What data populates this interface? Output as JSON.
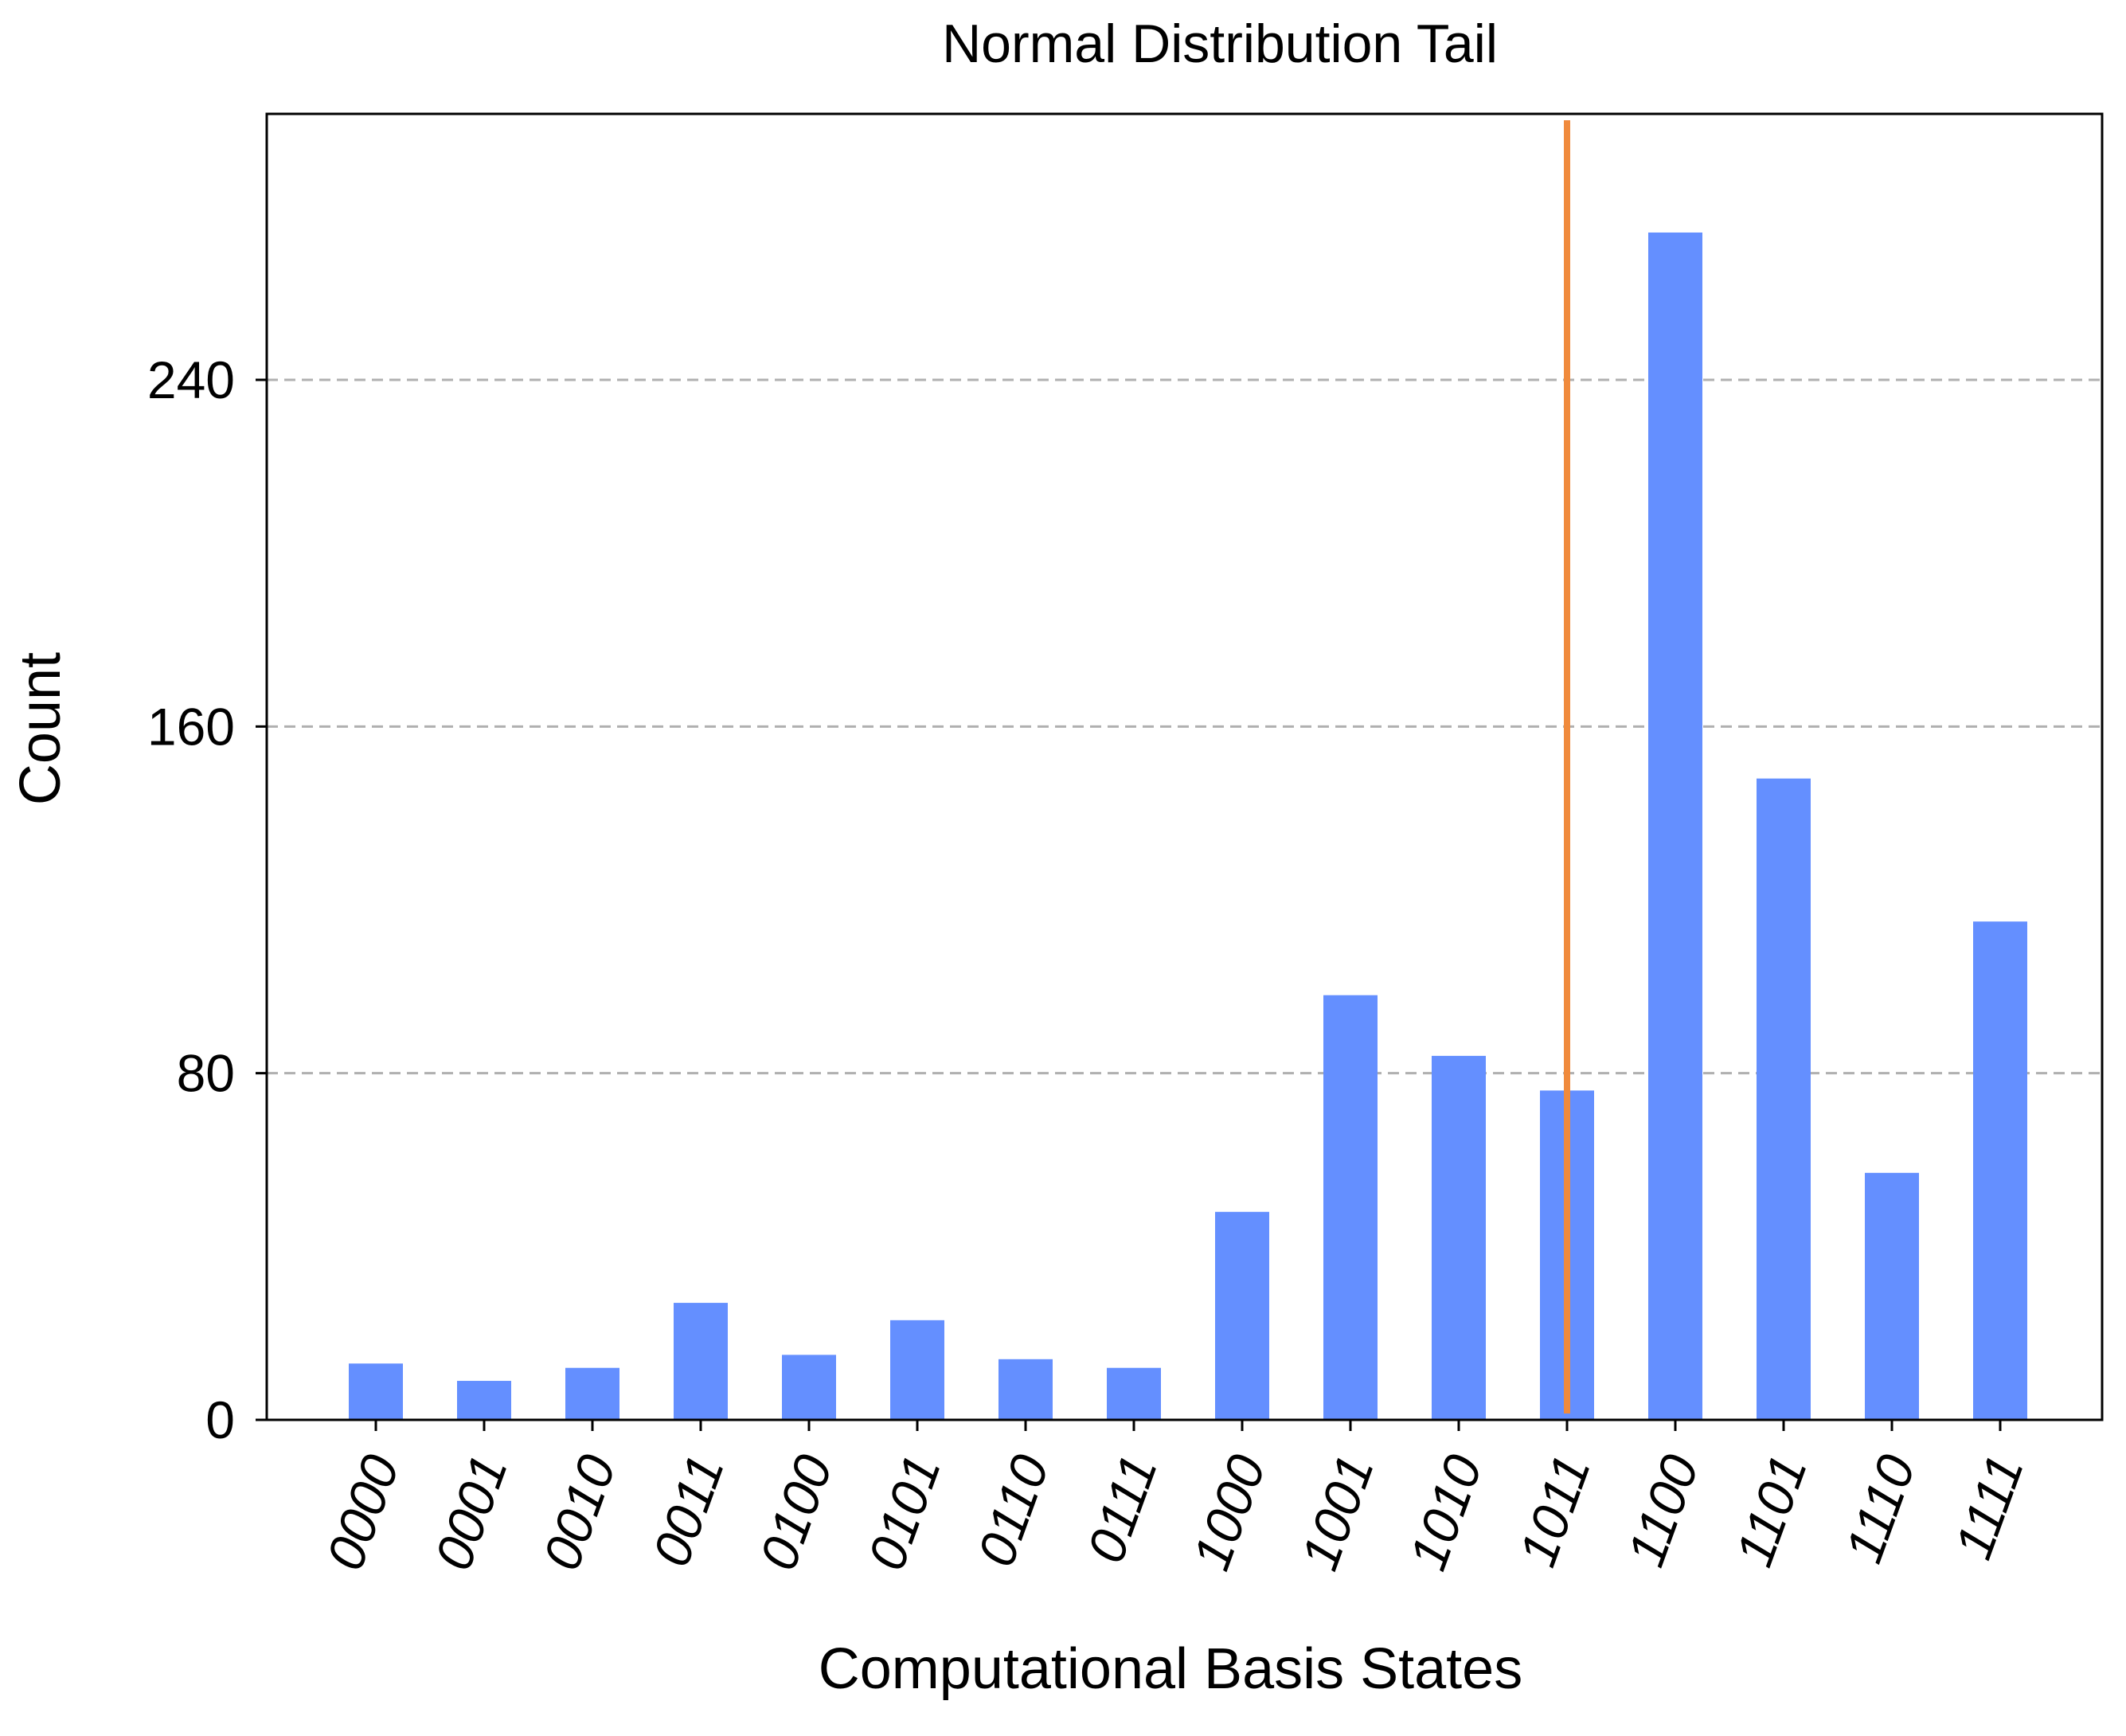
{
  "chart_data": {
    "type": "bar",
    "title": "Normal Distribution Tail",
    "xlabel": "Computational Basis States",
    "ylabel": "Count",
    "categories": [
      "0000",
      "0001",
      "0010",
      "0011",
      "0100",
      "0101",
      "0110",
      "0111",
      "1000",
      "1001",
      "1010",
      "1011",
      "1100",
      "1101",
      "1110",
      "1111"
    ],
    "values": [
      13,
      9,
      12,
      27,
      15,
      23,
      14,
      12,
      48,
      98,
      84,
      76,
      274,
      148,
      57,
      115
    ],
    "ylim": [
      0,
      300
    ],
    "yticks": [
      0,
      80,
      160,
      240
    ],
    "grid": "horizontal dashed",
    "threshold": {
      "category_index": 11,
      "color": "#f08a3c"
    },
    "colors": {
      "bar": "#648fff",
      "threshold": "#f08a3c",
      "grid": "#b0b0b0",
      "axis": "#000000"
    }
  }
}
